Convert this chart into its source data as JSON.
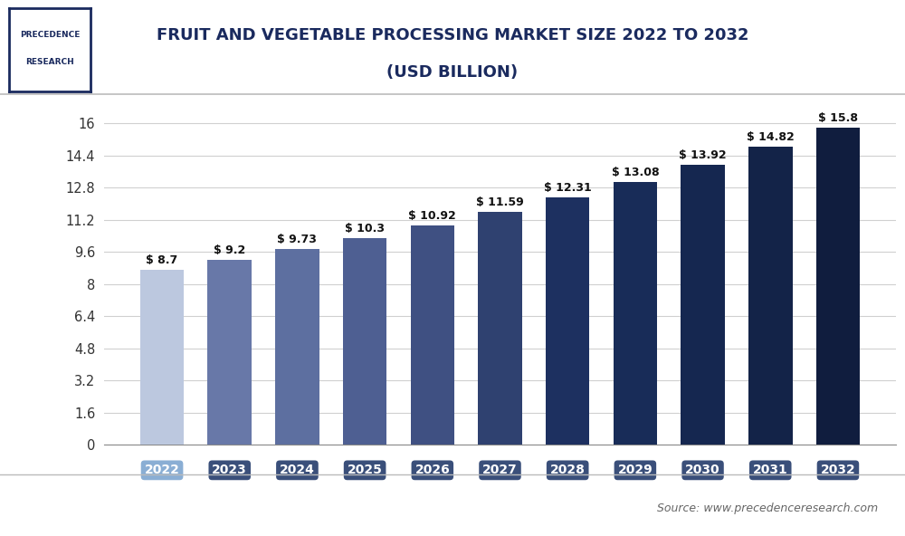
{
  "categories": [
    "2022",
    "2023",
    "2024",
    "2025",
    "2026",
    "2027",
    "2028",
    "2029",
    "2030",
    "2031",
    "2032"
  ],
  "values": [
    8.7,
    9.2,
    9.73,
    10.3,
    10.92,
    11.59,
    12.31,
    13.08,
    13.92,
    14.82,
    15.8
  ],
  "labels": [
    "$ 8.7",
    "$ 9.2",
    "$ 9.73",
    "$ 10.3",
    "$ 10.92",
    "$ 11.59",
    "$ 12.31",
    "$ 13.08",
    "$ 13.92",
    "$ 14.82",
    "$ 15.8"
  ],
  "bar_colors": [
    "#bcc8df",
    "#6878a8",
    "#5d6fa0",
    "#4e5f92",
    "#3f5082",
    "#2f4170",
    "#1d3060",
    "#182c58",
    "#152750",
    "#132348",
    "#101d3e"
  ],
  "xtick_bg_colors": [
    "#8aaed4",
    "#3a4f7a",
    "#3a4f7a",
    "#3a4f7a",
    "#3a4f7a",
    "#3a4f7a",
    "#3a4f7a",
    "#3a4f7a",
    "#3a4f7a",
    "#3a4f7a",
    "#3a4f7a"
  ],
  "title_line1": "FRUIT AND VEGETABLE PROCESSING MARKET SIZE 2022 TO 2032",
  "title_line2": "(USD BILLION)",
  "ytick_labels": [
    "0",
    "1.6",
    "3.2",
    "4.8",
    "6.4",
    "8",
    "9.6",
    "11.2",
    "12.8",
    "14.4",
    "16"
  ],
  "ytick_values": [
    0,
    1.6,
    3.2,
    4.8,
    6.4,
    8.0,
    9.6,
    11.2,
    12.8,
    14.4,
    16
  ],
  "ylim": [
    0,
    17.2
  ],
  "source_text": "Source: www.precedenceresearch.com",
  "bg_color": "#ffffff",
  "plot_bg_color": "#ffffff",
  "grid_color": "#d0d0d0",
  "title_color": "#1a2a5e",
  "label_fontsize": 9.0,
  "ytick_fontsize": 10.5,
  "xtick_fontsize": 10.0,
  "bar_width": 0.65,
  "title_fontsize": 13.0
}
